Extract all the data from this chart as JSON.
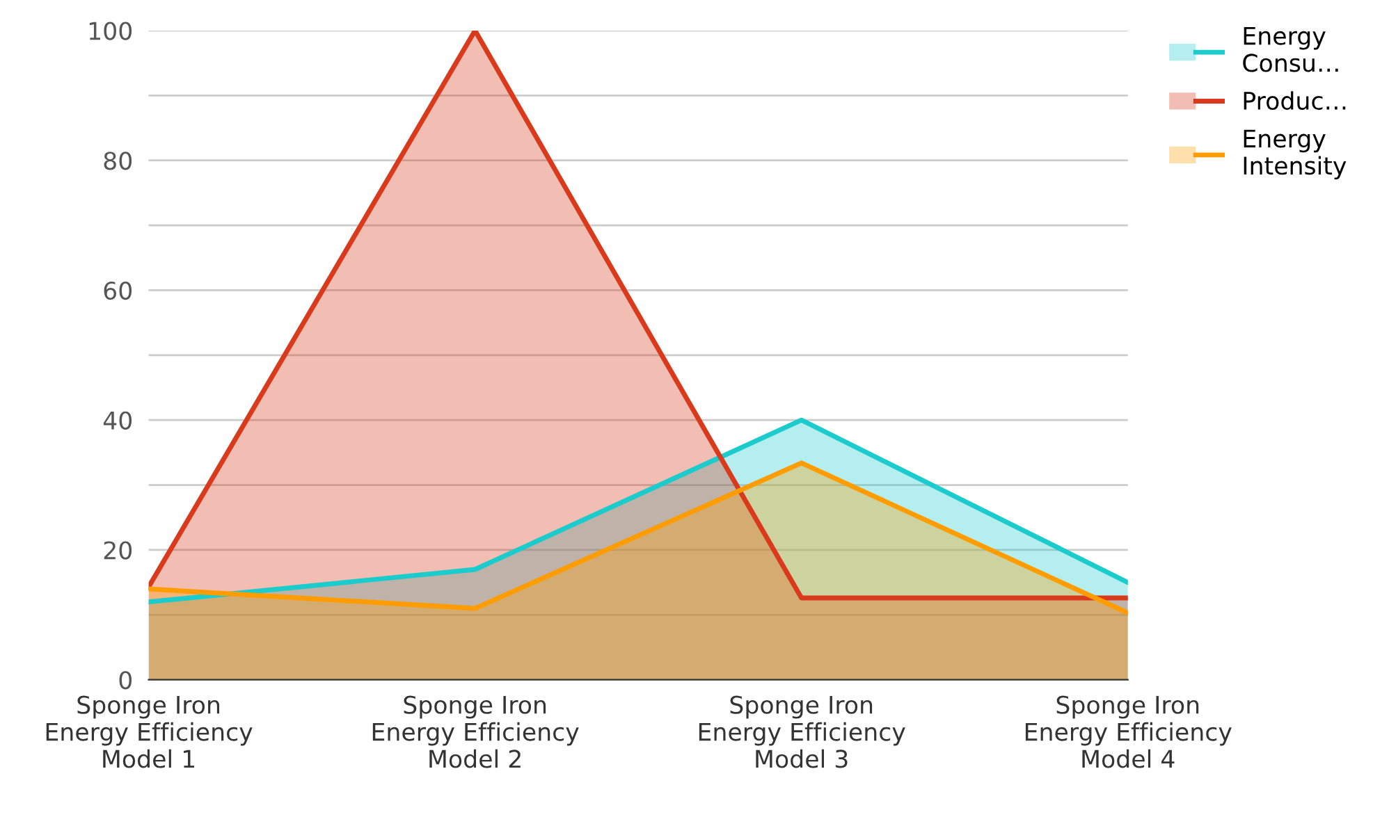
{
  "chart_data": {
    "type": "area",
    "categories": [
      "Sponge Iron\nEnergy Efficiency\nModel 1",
      "Sponge Iron\nEnergy Efficiency\nModel 2",
      "Sponge Iron\nEnergy Efficiency\nModel 3",
      "Sponge Iron\nEnergy Efficiency\nModel 4"
    ],
    "series": [
      {
        "name": "Energy\nConsu…",
        "color": "#1ccbcb",
        "values": [
          12,
          17,
          40,
          15
        ]
      },
      {
        "name": "Produc…",
        "color": "#d93a1c",
        "values": [
          14.3,
          100,
          12.6,
          12.6
        ]
      },
      {
        "name": "Energy\nIntensity",
        "color": "#ff9d00",
        "values": [
          14,
          11,
          33.4,
          10.3
        ]
      }
    ],
    "ylim": [
      0,
      100
    ],
    "yticks": [
      0,
      {
        "value": 10,
        "label": null
      },
      20,
      {
        "value": 30,
        "label": null
      },
      40,
      {
        "value": 50,
        "label": null
      },
      60,
      {
        "value": 70,
        "label": null
      },
      80,
      {
        "value": 90,
        "label": null
      },
      100
    ],
    "grid": "y",
    "legend": "top right"
  }
}
